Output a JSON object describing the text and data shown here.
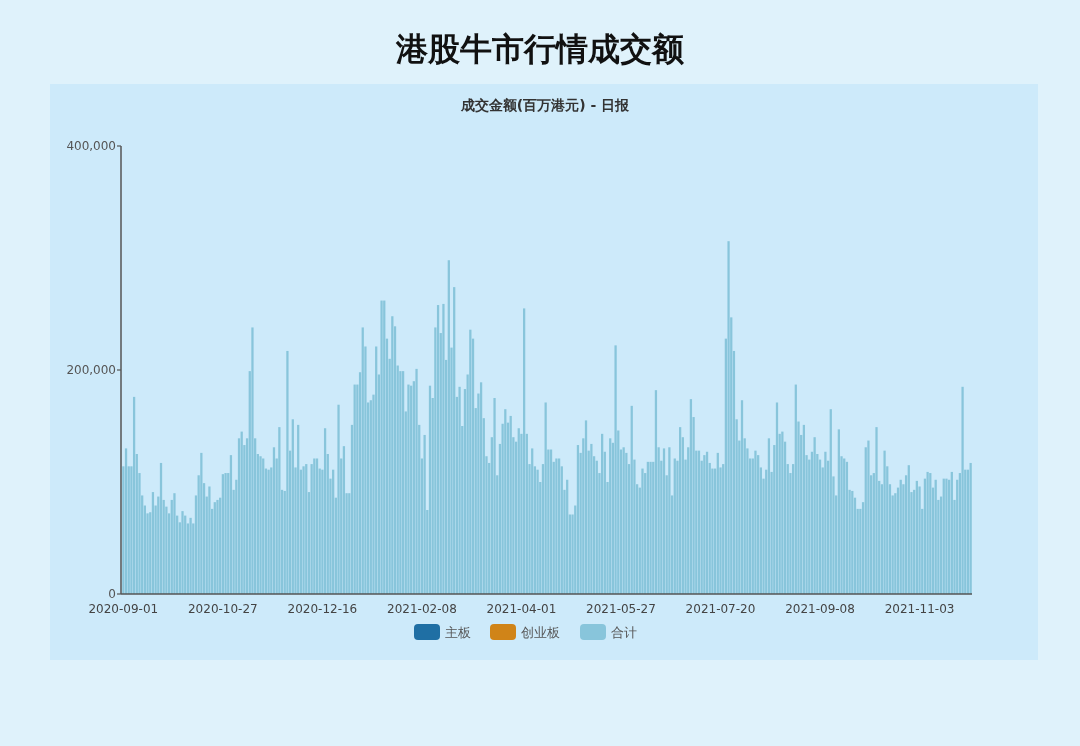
{
  "chart_data": {
    "type": "bar",
    "title": "港股牛市行情成交额",
    "subtitle": "成交金额(百万港元) - 日报",
    "categories": [
      "2020-09-01",
      null,
      null,
      null,
      null,
      null,
      null,
      null,
      null,
      null,
      null,
      null,
      null,
      null,
      null,
      null,
      null,
      null,
      null,
      null,
      null,
      null,
      null,
      null,
      null,
      null,
      null,
      null,
      null,
      null,
      null,
      null,
      null,
      null,
      null,
      null,
      null,
      "2020-10-27",
      null,
      null,
      null,
      null,
      null,
      null,
      null,
      null,
      null,
      null,
      null,
      null,
      null,
      null,
      null,
      null,
      null,
      null,
      null,
      null,
      null,
      null,
      null,
      null,
      null,
      null,
      null,
      null,
      null,
      null,
      null,
      null,
      null,
      null,
      null,
      null,
      "2020-12-16",
      null,
      null,
      null,
      null,
      null,
      null,
      null,
      null,
      null,
      null,
      null,
      null,
      null,
      null,
      null,
      null,
      null,
      null,
      null,
      null,
      null,
      null,
      null,
      null,
      null,
      null,
      null,
      null,
      null,
      null,
      null,
      null,
      null,
      null,
      null,
      null,
      "2021-02-08",
      null,
      null,
      null,
      null,
      null,
      null,
      null,
      null,
      null,
      null,
      null,
      null,
      null,
      null,
      null,
      null,
      null,
      null,
      null,
      null,
      null,
      null,
      null,
      null,
      null,
      null,
      null,
      null,
      null,
      null,
      null,
      null,
      null,
      null,
      null,
      null,
      "2021-04-01",
      null,
      null,
      null,
      null,
      null,
      null,
      null,
      null,
      null,
      null,
      null,
      null,
      null,
      null,
      null,
      null,
      null,
      null,
      null,
      null,
      null,
      null,
      null,
      null,
      null,
      null,
      null,
      null,
      null,
      null,
      null,
      null,
      null,
      null,
      null,
      null,
      "2021-05-27",
      null,
      null,
      null,
      null,
      null,
      null,
      null,
      null,
      null,
      null,
      null,
      null,
      null,
      null,
      null,
      null,
      null,
      null,
      null,
      null,
      null,
      null,
      null,
      null,
      null,
      null,
      null,
      null,
      null,
      null,
      null,
      null,
      null,
      null,
      null,
      null,
      "2021-07-20",
      null,
      null,
      null,
      null,
      null,
      null,
      null,
      null,
      null,
      null,
      null,
      null,
      null,
      null,
      null,
      null,
      null,
      null,
      null,
      null,
      null,
      null,
      null,
      null,
      null,
      null,
      null,
      null,
      null,
      null,
      null,
      null,
      null,
      null,
      null,
      null,
      "2021-09-08",
      null,
      null,
      null,
      null,
      null,
      null,
      null,
      null,
      null,
      null,
      null,
      null,
      null,
      null,
      null,
      null,
      null,
      null,
      null,
      null,
      null,
      null,
      null,
      null,
      null,
      null,
      null,
      null,
      null,
      null,
      null,
      null,
      null,
      null,
      null,
      null,
      "2021-11-03",
      null,
      null,
      null,
      null,
      null,
      null,
      null,
      null,
      null,
      null,
      null,
      null,
      null,
      null,
      null,
      null,
      null,
      null,
      null
    ],
    "series": [
      {
        "name": "主板",
        "color": "#1f6fa4",
        "values": [
          null,
          null,
          null,
          null,
          null,
          null,
          null,
          null,
          null,
          null,
          null,
          null,
          null,
          null,
          null,
          null,
          null,
          null,
          null,
          null,
          null,
          null,
          null,
          null,
          null,
          null,
          null,
          null,
          null,
          null,
          null,
          null,
          null,
          null,
          null,
          null,
          null,
          null,
          null,
          null,
          null,
          null,
          null,
          null,
          null,
          null,
          null,
          null,
          null,
          null,
          null,
          null,
          null,
          null,
          null,
          null,
          null,
          null,
          null,
          null,
          null,
          null,
          null,
          null,
          null,
          null,
          null,
          null,
          null,
          null,
          null,
          null,
          null,
          null,
          null,
          null,
          null,
          null,
          null,
          null,
          null,
          null,
          null,
          null,
          null,
          null,
          null,
          null,
          null,
          null,
          null,
          null,
          null,
          null,
          null,
          null,
          null,
          null,
          null,
          null,
          null,
          null,
          null,
          null,
          null,
          null,
          null,
          null,
          null,
          null,
          null,
          null,
          null,
          null,
          null,
          null,
          null,
          null,
          null,
          null,
          null,
          null,
          null,
          null,
          null,
          null,
          null,
          null,
          null,
          null,
          null,
          null,
          null,
          null,
          null,
          null,
          null,
          null,
          null,
          null,
          null,
          null,
          null,
          null,
          null,
          null,
          null,
          null,
          null,
          null,
          null,
          null,
          null,
          null,
          null,
          null,
          null,
          null,
          null,
          null,
          null,
          null,
          null,
          null,
          null,
          null,
          null,
          null,
          null,
          null,
          null,
          null,
          null,
          null,
          null,
          null,
          null,
          null,
          null,
          null,
          null,
          null,
          null,
          null,
          null,
          null,
          null,
          null,
          null,
          null,
          null,
          null,
          null,
          null,
          null,
          null,
          null,
          null,
          null,
          null,
          null,
          null,
          null,
          null,
          null,
          null,
          null,
          null,
          null,
          null,
          null,
          null,
          null,
          null,
          null,
          null,
          null,
          null,
          null,
          null,
          null,
          null,
          null,
          null,
          null,
          null,
          null,
          null,
          null,
          null,
          null,
          null,
          null,
          null,
          null,
          null,
          null,
          null,
          null,
          null,
          null,
          null,
          null,
          null,
          null,
          null,
          null,
          null,
          null,
          null,
          null,
          null,
          null,
          null,
          null,
          null,
          null,
          null,
          null,
          null,
          null,
          null,
          null,
          null,
          null,
          null,
          null,
          null,
          null,
          null,
          null,
          null,
          null,
          null,
          null,
          null,
          null,
          null,
          null,
          null,
          null,
          null,
          null,
          null,
          null,
          null,
          null,
          null,
          null,
          null,
          null,
          null,
          null,
          null,
          null,
          null,
          null,
          null,
          null,
          null,
          null,
          null,
          null,
          null,
          null,
          null,
          null,
          null,
          null,
          null,
          null,
          null,
          null,
          null,
          null,
          null
        ]
      },
      {
        "name": "创业板",
        "color": "#d08418",
        "values": [
          null,
          null,
          null,
          null,
          null,
          null,
          null,
          null,
          null,
          null,
          null,
          null,
          null,
          null,
          null,
          null,
          null,
          null,
          null,
          null,
          null,
          null,
          null,
          null,
          null,
          null,
          null,
          null,
          null,
          null,
          null,
          null,
          null,
          null,
          null,
          null,
          null,
          null,
          null,
          null,
          null,
          null,
          null,
          null,
          null,
          null,
          null,
          null,
          null,
          null,
          null,
          null,
          null,
          null,
          null,
          null,
          null,
          null,
          null,
          null,
          null,
          null,
          null,
          null,
          null,
          null,
          null,
          null,
          null,
          null,
          null,
          null,
          null,
          null,
          null,
          null,
          null,
          null,
          null,
          null,
          null,
          null,
          null,
          null,
          null,
          null,
          null,
          null,
          null,
          null,
          null,
          null,
          null,
          null,
          null,
          null,
          null,
          null,
          null,
          null,
          null,
          null,
          null,
          null,
          null,
          null,
          null,
          null,
          null,
          null,
          null,
          null,
          null,
          null,
          null,
          null,
          null,
          null,
          null,
          null,
          null,
          null,
          null,
          null,
          null,
          null,
          null,
          null,
          null,
          null,
          null,
          null,
          null,
          null,
          null,
          null,
          null,
          null,
          null,
          null,
          null,
          null,
          null,
          null,
          null,
          null,
          null,
          null,
          null,
          null,
          null,
          null,
          null,
          null,
          null,
          null,
          null,
          null,
          null,
          null,
          null,
          null,
          null,
          null,
          null,
          null,
          null,
          null,
          null,
          null,
          null,
          null,
          null,
          null,
          null,
          null,
          null,
          null,
          null,
          null,
          null,
          null,
          null,
          null,
          null,
          null,
          null,
          null,
          null,
          null,
          null,
          null,
          null,
          null,
          null,
          null,
          null,
          null,
          null,
          null,
          null,
          null,
          null,
          null,
          null,
          null,
          null,
          null,
          null,
          null,
          null,
          null,
          null,
          null,
          null,
          null,
          null,
          null,
          null,
          null,
          null,
          null,
          null,
          null,
          null,
          null,
          null,
          null,
          null,
          null,
          null,
          null,
          null,
          null,
          null,
          null,
          null,
          null,
          null,
          null,
          null,
          null,
          null,
          null,
          null,
          null,
          null,
          null,
          null,
          null,
          null,
          null,
          null,
          null,
          null,
          null,
          null,
          null,
          null,
          null,
          null,
          null,
          null,
          null,
          null,
          null,
          null,
          null,
          null,
          null,
          null,
          null,
          null,
          null,
          null,
          null,
          null,
          null,
          null,
          null,
          null,
          null,
          null,
          null,
          null,
          null,
          null,
          null,
          null,
          null,
          null,
          null,
          null,
          null,
          null,
          null,
          null,
          null,
          null,
          null,
          null,
          null,
          null,
          null,
          null,
          null,
          null,
          null,
          null,
          null,
          null,
          null,
          null,
          null,
          null,
          null
        ]
      },
      {
        "name": "合计",
        "color": "#88c5db",
        "values": [
          114000,
          130000,
          114000,
          114000,
          176000,
          125000,
          108000,
          88000,
          79000,
          72000,
          73000,
          91000,
          79000,
          87000,
          117000,
          84000,
          78000,
          72000,
          84000,
          90000,
          70000,
          64000,
          74000,
          70000,
          63000,
          68000,
          63000,
          88000,
          106000,
          126000,
          99000,
          87000,
          96000,
          76000,
          82000,
          84000,
          86000,
          107000,
          108000,
          108000,
          124000,
          93000,
          102000,
          139000,
          145000,
          133000,
          139000,
          199000,
          238000,
          139000,
          125000,
          123000,
          121000,
          112000,
          111000,
          113000,
          131000,
          121000,
          149000,
          93000,
          92000,
          217000,
          128000,
          156000,
          113000,
          151000,
          111000,
          114000,
          116000,
          91000,
          116000,
          121000,
          121000,
          112000,
          111000,
          148000,
          125000,
          103000,
          111000,
          86000,
          169000,
          121000,
          132000,
          90000,
          90000,
          151000,
          187000,
          187000,
          198000,
          238000,
          221000,
          171000,
          173000,
          178000,
          221000,
          196000,
          262000,
          262000,
          228000,
          210000,
          248000,
          239000,
          204000,
          199000,
          199000,
          163000,
          187000,
          186000,
          190000,
          201000,
          151000,
          121000,
          142000,
          75000,
          186000,
          175000,
          238000,
          258000,
          233000,
          259000,
          209000,
          298000,
          220000,
          274000,
          176000,
          185000,
          150000,
          183000,
          196000,
          236000,
          228000,
          166000,
          179000,
          189000,
          157000,
          123000,
          117000,
          140000,
          175000,
          106000,
          134000,
          152000,
          165000,
          153000,
          159000,
          140000,
          136000,
          148000,
          143000,
          255000,
          143000,
          116000,
          130000,
          114000,
          111000,
          100000,
          116000,
          171000,
          129000,
          129000,
          118000,
          121000,
          121000,
          114000,
          93000,
          102000,
          71000,
          71000,
          79000,
          133000,
          126000,
          139000,
          155000,
          128000,
          134000,
          123000,
          119000,
          108000,
          143000,
          127000,
          100000,
          139000,
          135000,
          222000,
          146000,
          129000,
          131000,
          126000,
          116000,
          168000,
          120000,
          98000,
          95000,
          112000,
          108000,
          118000,
          118000,
          118000,
          182000,
          131000,
          119000,
          130000,
          106000,
          131000,
          88000,
          121000,
          119000,
          149000,
          140000,
          120000,
          131000,
          174000,
          158000,
          128000,
          128000,
          119000,
          124000,
          127000,
          117000,
          112000,
          112000,
          126000,
          113000,
          116000,
          228000,
          315000,
          247000,
          217000,
          156000,
          137000,
          173000,
          139000,
          130000,
          121000,
          121000,
          128000,
          124000,
          113000,
          103000,
          111000,
          139000,
          109000,
          133000,
          171000,
          143000,
          145000,
          136000,
          116000,
          108000,
          116000,
          187000,
          154000,
          142000,
          151000,
          124000,
          120000,
          127000,
          140000,
          125000,
          120000,
          113000,
          127000,
          119000,
          165000,
          105000,
          88000,
          147000,
          123000,
          121000,
          118000,
          93000,
          92000,
          86000,
          76000,
          76000,
          82000,
          131000,
          137000,
          106000,
          108000,
          149000,
          101000,
          98000,
          128000,
          114000,
          98000,
          88000,
          90000,
          95000,
          102000,
          98000,
          106000,
          115000,
          91000,
          93000,
          101000,
          96000,
          76000,
          103000,
          109000,
          108000,
          95000,
          102000,
          84000,
          87000,
          103000,
          103000,
          102000,
          109000,
          84000,
          102000,
          108000,
          185000,
          111000,
          111000,
          117000
        ]
      }
    ],
    "ylim": [
      0,
      400000
    ],
    "yticks": [
      0,
      {
        "value": 200000,
        "label": "200,000"
      },
      {
        "value": 400000,
        "label": "400,000"
      }
    ],
    "legend": "bottom"
  }
}
